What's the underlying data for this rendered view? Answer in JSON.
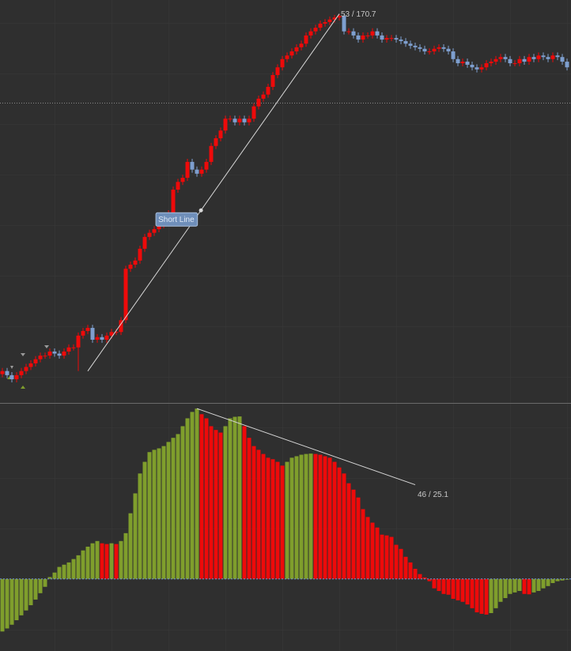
{
  "chart_data": [
    {
      "type": "candlestick",
      "open": [
        100.6,
        101.2,
        100.4,
        99.6,
        100.4,
        101.2,
        102.0,
        102.7,
        103.5,
        104.2,
        104.2,
        105.0,
        104.6,
        104.2,
        105.0,
        105.8,
        105.8,
        108.1,
        109.0,
        109.6,
        107.3,
        107.8,
        107.3,
        108.1,
        108.8,
        108.8,
        111.1,
        121.1,
        121.9,
        122.7,
        125.0,
        127.3,
        128.1,
        128.8,
        129.6,
        130.4,
        131.9,
        136.5,
        138.0,
        138.8,
        141.9,
        140.4,
        139.6,
        140.4,
        141.9,
        145.0,
        146.5,
        148.0,
        150.3,
        150.3,
        149.6,
        150.3,
        149.6,
        150.3,
        152.7,
        154.2,
        155.0,
        156.5,
        158.8,
        160.3,
        161.9,
        162.6,
        163.4,
        164.2,
        164.9,
        166.5,
        167.3,
        168.0,
        168.8,
        169.1,
        169.6,
        170.0,
        170.3,
        167.3,
        167.3,
        166.5,
        165.7,
        166.5,
        166.5,
        167.3,
        166.5,
        165.7,
        166.0,
        166.0,
        165.7,
        165.4,
        164.9,
        164.5,
        164.2,
        163.9,
        163.4,
        163.4,
        163.9,
        164.2,
        163.9,
        163.4,
        161.9,
        161.1,
        161.4,
        160.8,
        160.3,
        159.9,
        160.3,
        161.1,
        161.4,
        161.9,
        162.3,
        161.9,
        161.1,
        161.1,
        161.9,
        161.4,
        162.3,
        161.9,
        162.6,
        162.3,
        161.9,
        162.6,
        162.3,
        161.4
      ],
      "high": [
        101.8,
        101.8,
        101.0,
        101.0,
        101.8,
        102.6,
        103.3,
        104.1,
        104.8,
        104.8,
        105.6,
        105.6,
        105.2,
        105.6,
        106.4,
        106.4,
        108.7,
        109.6,
        110.2,
        110.2,
        108.4,
        108.4,
        108.7,
        109.4,
        109.4,
        111.7,
        121.7,
        122.5,
        123.3,
        125.6,
        127.9,
        128.7,
        129.4,
        130.2,
        131.0,
        132.5,
        137.1,
        138.6,
        139.4,
        142.5,
        142.5,
        141.0,
        141.0,
        142.5,
        145.6,
        147.1,
        148.6,
        150.9,
        150.9,
        150.9,
        150.9,
        150.9,
        150.9,
        153.3,
        154.8,
        155.6,
        157.1,
        159.4,
        160.9,
        162.5,
        163.2,
        164.0,
        164.8,
        165.5,
        167.1,
        167.9,
        168.6,
        169.4,
        169.7,
        170.2,
        170.5,
        170.7,
        170.6,
        167.9,
        167.9,
        167.1,
        167.1,
        167.1,
        167.9,
        167.9,
        167.1,
        166.6,
        166.6,
        166.6,
        166.3,
        166.0,
        165.5,
        165.1,
        164.8,
        164.5,
        164.0,
        164.5,
        164.8,
        164.8,
        164.5,
        164.0,
        162.5,
        162.0,
        162.0,
        161.4,
        160.9,
        160.9,
        161.7,
        162.0,
        162.5,
        162.9,
        162.9,
        162.5,
        161.7,
        162.5,
        162.5,
        162.9,
        162.9,
        163.2,
        163.2,
        162.9,
        163.2,
        163.2,
        162.9,
        162.0
      ],
      "low": [
        100.0,
        99.8,
        99.0,
        99.0,
        99.8,
        100.6,
        101.4,
        102.1,
        102.9,
        103.6,
        103.6,
        104.0,
        103.6,
        103.6,
        104.4,
        105.2,
        101.2,
        107.5,
        108.4,
        106.7,
        106.7,
        106.7,
        106.7,
        107.5,
        108.2,
        108.2,
        110.5,
        120.5,
        121.3,
        122.1,
        124.4,
        126.7,
        127.5,
        128.2,
        129.0,
        129.8,
        131.3,
        135.9,
        137.4,
        138.2,
        139.8,
        139.0,
        139.0,
        139.8,
        141.3,
        144.4,
        145.9,
        147.4,
        149.7,
        149.0,
        149.0,
        149.0,
        149.0,
        149.7,
        152.1,
        153.6,
        154.4,
        155.9,
        158.2,
        159.7,
        161.3,
        162.0,
        162.8,
        163.6,
        164.3,
        165.9,
        166.7,
        167.4,
        168.2,
        168.5,
        169.0,
        169.4,
        166.7,
        166.7,
        165.9,
        165.1,
        165.1,
        165.9,
        165.9,
        165.9,
        165.1,
        165.1,
        165.4,
        165.1,
        164.8,
        164.3,
        163.9,
        163.6,
        163.3,
        162.8,
        162.8,
        162.8,
        163.3,
        163.3,
        162.8,
        161.3,
        160.5,
        160.5,
        160.2,
        159.7,
        159.3,
        159.3,
        159.7,
        160.5,
        160.8,
        161.3,
        161.3,
        160.5,
        160.5,
        160.5,
        160.8,
        160.8,
        161.3,
        161.3,
        161.7,
        161.3,
        161.3,
        161.7,
        160.8,
        159.7
      ],
      "close": [
        101.2,
        100.4,
        99.6,
        100.4,
        101.2,
        102.0,
        102.7,
        103.5,
        104.2,
        104.2,
        105.0,
        104.6,
        104.2,
        105.0,
        105.8,
        105.8,
        108.1,
        109.0,
        109.6,
        107.3,
        107.8,
        107.3,
        108.1,
        108.8,
        108.8,
        111.1,
        121.1,
        121.9,
        122.7,
        125.0,
        127.3,
        128.1,
        128.8,
        129.6,
        130.4,
        131.9,
        136.5,
        138.0,
        138.8,
        141.9,
        140.4,
        139.6,
        140.4,
        141.9,
        145.0,
        146.5,
        148.0,
        150.3,
        150.3,
        149.6,
        150.3,
        149.6,
        150.3,
        152.7,
        154.2,
        155.0,
        156.5,
        158.8,
        160.3,
        161.9,
        162.6,
        163.4,
        164.2,
        164.9,
        166.5,
        167.3,
        168.0,
        168.8,
        169.1,
        169.6,
        170.0,
        170.3,
        167.3,
        167.3,
        166.5,
        165.7,
        166.5,
        166.5,
        167.3,
        166.5,
        165.7,
        166.0,
        166.0,
        165.7,
        165.4,
        164.9,
        164.5,
        164.2,
        163.9,
        163.4,
        163.4,
        163.9,
        164.2,
        163.9,
        163.4,
        161.9,
        161.1,
        161.4,
        160.8,
        160.3,
        159.9,
        160.3,
        161.1,
        161.4,
        161.9,
        162.3,
        161.9,
        161.1,
        161.1,
        161.9,
        161.4,
        162.3,
        161.9,
        162.6,
        162.3,
        161.9,
        162.6,
        162.3,
        161.4,
        160.3
      ],
      "up_color": "#ee0a0a",
      "down_color": "#7e9fcf",
      "ylim": [
        95,
        173.4
      ],
      "reference_line": 153.4,
      "annotations": [
        {
          "label": "Short Line",
          "text": "53 / 170.7",
          "x": [
            18,
            71
          ],
          "y": [
            101.2,
            170.7
          ]
        }
      ]
    },
    {
      "type": "bar",
      "values": [
        -14.0,
        -13.2,
        -12.2,
        -11.0,
        -9.7,
        -8.4,
        -7.0,
        -5.5,
        -3.8,
        -2.1,
        0.5,
        1.7,
        3.2,
        3.8,
        4.4,
        5.3,
        6.3,
        7.6,
        8.6,
        9.5,
        10.1,
        9.5,
        9.3,
        9.5,
        9.3,
        10.1,
        12.2,
        17.5,
        22.8,
        28.1,
        31.2,
        33.8,
        34.4,
        34.8,
        35.4,
        36.5,
        37.6,
        38.6,
        40.7,
        42.8,
        44.5,
        45.4,
        43.9,
        42.8,
        40.7,
        39.7,
        39.0,
        40.7,
        42.8,
        43.2,
        43.3,
        40.7,
        37.6,
        35.4,
        34.4,
        33.3,
        32.3,
        31.9,
        31.2,
        30.2,
        31.2,
        32.3,
        32.7,
        33.1,
        33.3,
        33.4,
        33.3,
        33.1,
        32.7,
        32.3,
        31.2,
        29.7,
        28.1,
        25.5,
        23.8,
        21.7,
        18.6,
        16.5,
        15.0,
        13.7,
        11.8,
        11.6,
        11.2,
        9.1,
        8.0,
        5.9,
        4.4,
        2.7,
        1.3,
        0.4,
        -0.6,
        -2.5,
        -3.2,
        -4.0,
        -4.2,
        -5.3,
        -5.7,
        -6.1,
        -6.8,
        -7.8,
        -8.9,
        -9.3,
        -9.5,
        -9.1,
        -7.8,
        -6.1,
        -5.1,
        -4.0,
        -3.6,
        -3.2,
        -4.0,
        -4.1,
        -3.6,
        -3.2,
        -2.5,
        -1.9,
        -1.1,
        -0.6,
        -0.4,
        -0.2
      ],
      "rising_color": "#7f9e2c",
      "falling_color": "#ee0a0a",
      "ylim": [
        -19.2,
        46.9
      ],
      "annotations": [
        {
          "text": "46 / 25.1",
          "x": [
            41,
            87
          ],
          "y": [
            45.4,
            25.1
          ]
        }
      ]
    }
  ]
}
